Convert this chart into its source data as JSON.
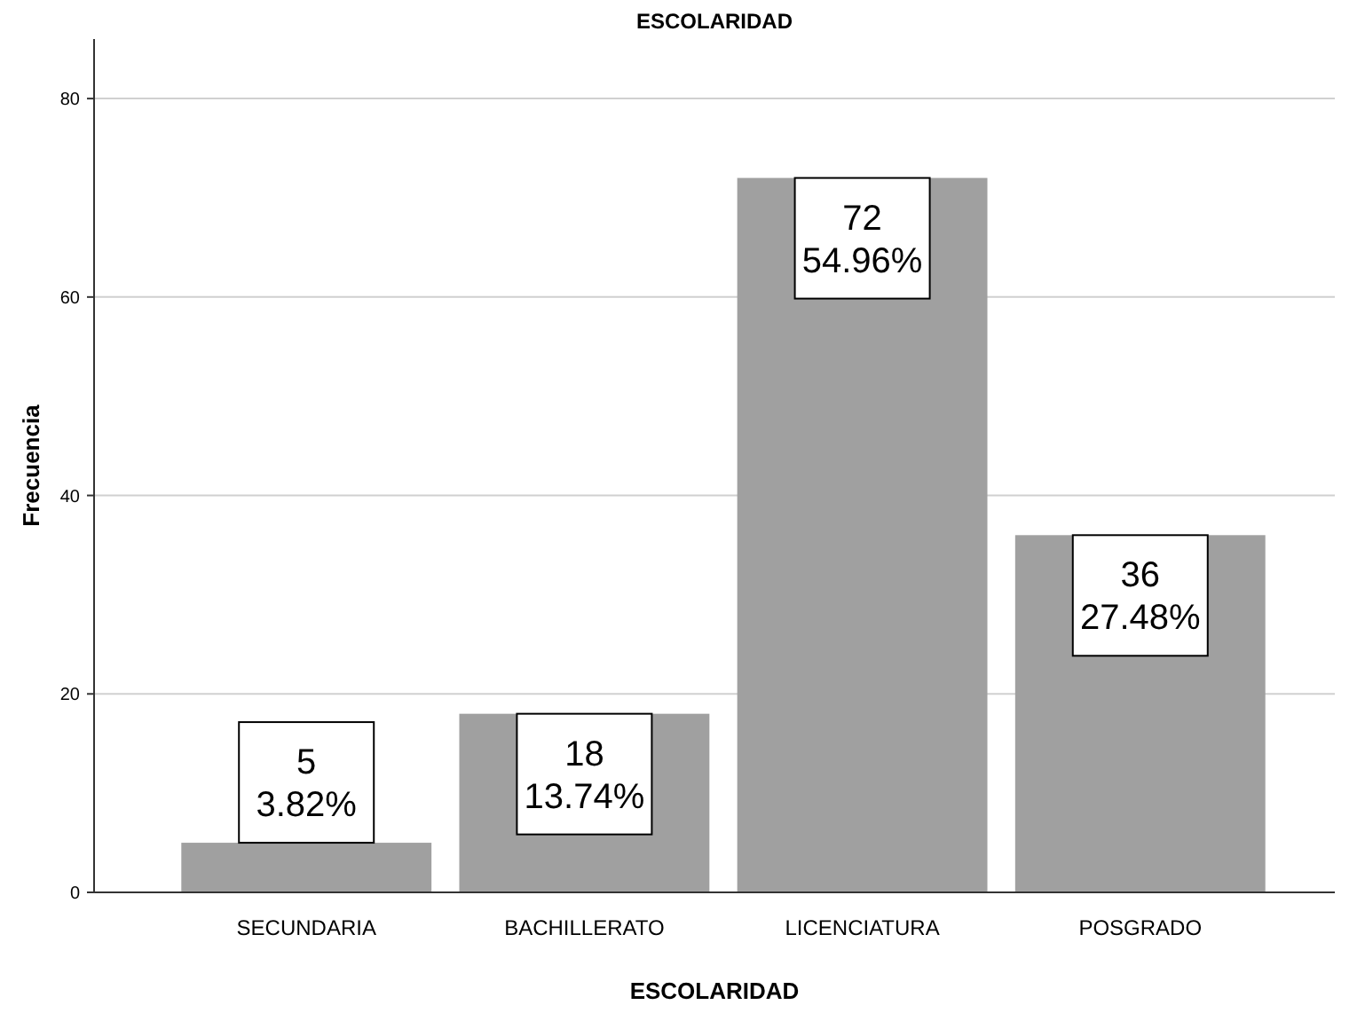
{
  "chart_data": {
    "type": "bar",
    "title": "ESCOLARIDAD",
    "xlabel": "ESCOLARIDAD",
    "ylabel": "Frecuencia",
    "categories": [
      "SECUNDARIA",
      "BACHILLERATO",
      "LICENCIATURA",
      "POSGRADO"
    ],
    "values": [
      5,
      18,
      72,
      36
    ],
    "value_labels": [
      "5\n3.82%",
      "18\n13.74%",
      "72\n54.96%",
      "36\n27.48%"
    ],
    "color": "#a0a0a0",
    "ylim": [
      0,
      86
    ],
    "yticks": [
      0,
      20,
      40,
      60,
      80
    ],
    "grid": "y"
  }
}
